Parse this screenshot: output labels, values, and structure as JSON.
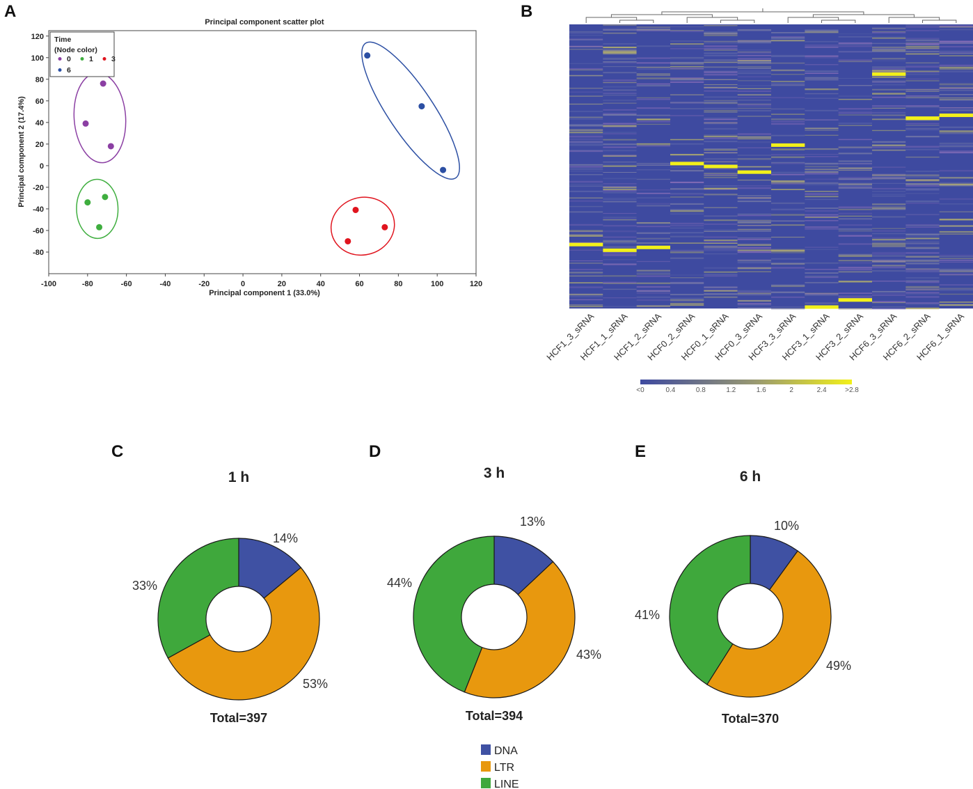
{
  "panels": {
    "a": "A",
    "b": "B",
    "c": "C",
    "d": "D",
    "e": "E"
  },
  "colors": {
    "group0": "#8b3fa3",
    "group1": "#3fae3f",
    "group3": "#e0141e",
    "group6": "#2c4fa3",
    "dna": "#3f51a3",
    "ltr": "#e8980e",
    "line": "#3fa83c",
    "heat_low": "#3e4aa0",
    "heat_high": "#f2f01a"
  },
  "chart_data": [
    {
      "type": "scatter",
      "title": "Principal component scatter plot",
      "xlabel": "Principal component 1 (33.0%)",
      "ylabel": "Principal component 2 (17.4%)",
      "xlim": [
        -100,
        120
      ],
      "ylim": [
        -100,
        125
      ],
      "xticks": [
        "-100",
        "-80",
        "-60",
        "-40",
        "-20",
        "0",
        "20",
        "40",
        "60",
        "80",
        "100",
        "120"
      ],
      "yticks": [
        "120",
        "100",
        "80",
        "60",
        "40",
        "20",
        "0",
        "-20",
        "-40",
        "-60",
        "-80"
      ],
      "legend": {
        "title_line1": "Time",
        "title_line2": "(Node color)",
        "labels": [
          "0",
          "1",
          "3",
          "6"
        ]
      },
      "series": [
        {
          "name": "0",
          "points": [
            [
              -72,
              76
            ],
            [
              -81,
              39
            ],
            [
              -68,
              18
            ]
          ]
        },
        {
          "name": "1",
          "points": [
            [
              -71,
              -29
            ],
            [
              -80,
              -34
            ],
            [
              -74,
              -57
            ]
          ]
        },
        {
          "name": "3",
          "points": [
            [
              58,
              -41
            ],
            [
              73,
              -57
            ],
            [
              54,
              -70
            ]
          ]
        },
        {
          "name": "6",
          "points": [
            [
              64,
              102
            ],
            [
              92,
              55
            ],
            [
              103,
              -4
            ]
          ]
        }
      ]
    },
    {
      "type": "heatmap",
      "samples": [
        "HCF1_3_sRNA",
        "HCF1_1_sRNA",
        "HCF1_2_sRNA",
        "HCF0_2_sRNA",
        "HCF0_1_sRNA",
        "HCF0_3_sRNA",
        "HCF3_3_sRNA",
        "HCF3_1_sRNA",
        "HCF3_2_sRNA",
        "HCF6_3_sRNA",
        "HCF6_2_sRNA",
        "HCF6_1_sRNA"
      ],
      "colorbar_ticks": [
        "<0",
        "0.4",
        "0.8",
        "1.2",
        "1.6",
        "2",
        "2.4",
        ">2.8"
      ],
      "highlight_rows": [
        [
          0,
          0.775
        ],
        [
          1,
          0.795
        ],
        [
          2,
          0.785
        ],
        [
          3,
          0.49
        ],
        [
          4,
          0.5
        ],
        [
          5,
          0.52
        ],
        [
          6,
          0.425
        ],
        [
          7,
          0.995
        ],
        [
          8,
          0.97
        ],
        [
          9,
          0.175
        ],
        [
          10,
          0.33
        ],
        [
          11,
          0.32
        ]
      ]
    },
    {
      "type": "pie",
      "panel": "C",
      "title": "1 h",
      "categories": [
        "DNA",
        "LTR",
        "LINE"
      ],
      "values": [
        14,
        53,
        33
      ],
      "labels": [
        "14%",
        "53%",
        "33%"
      ],
      "total": "Total=397"
    },
    {
      "type": "pie",
      "panel": "D",
      "title": "3 h",
      "categories": [
        "DNA",
        "LTR",
        "LINE"
      ],
      "values": [
        13,
        43,
        44
      ],
      "labels": [
        "13%",
        "43%",
        "44%"
      ],
      "total": "Total=394"
    },
    {
      "type": "pie",
      "panel": "E",
      "title": "6 h",
      "categories": [
        "DNA",
        "LTR",
        "LINE"
      ],
      "values": [
        10,
        49,
        41
      ],
      "labels": [
        "10%",
        "49%",
        "41%"
      ],
      "total": "Total=370"
    }
  ],
  "type_legend": [
    "DNA",
    "LTR",
    "LINE"
  ]
}
